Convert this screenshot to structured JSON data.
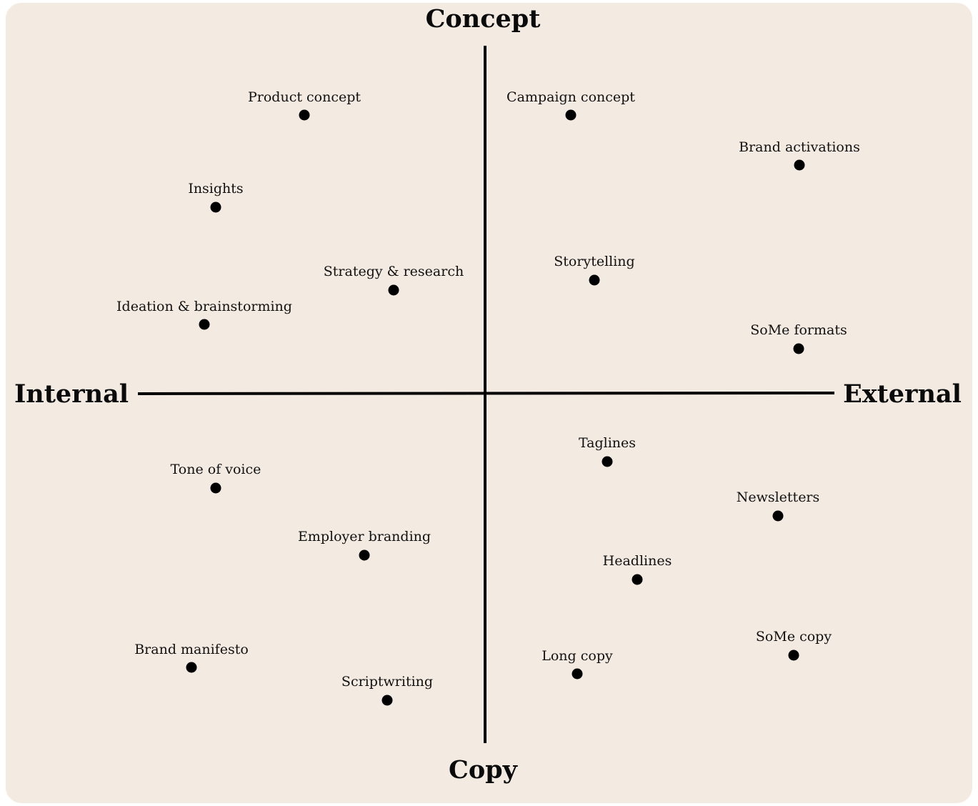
{
  "axes": {
    "top": "Concept",
    "bottom": "Copy",
    "left": "Internal",
    "right": "External"
  },
  "colors": {
    "background": "#f3eae2",
    "ink": "#000000"
  },
  "items": [
    {
      "label": "Product concept"
    },
    {
      "label": "Campaign concept"
    },
    {
      "label": "Brand activations"
    },
    {
      "label": "Insights"
    },
    {
      "label": "Strategy & research"
    },
    {
      "label": "Storytelling"
    },
    {
      "label": "Ideation & brainstorming"
    },
    {
      "label": "SoMe formats"
    },
    {
      "label": "Taglines"
    },
    {
      "label": "Tone of voice"
    },
    {
      "label": "Newsletters"
    },
    {
      "label": "Employer branding"
    },
    {
      "label": "Headlines"
    },
    {
      "label": "SoMe copy"
    },
    {
      "label": "Brand manifesto"
    },
    {
      "label": "Long copy"
    },
    {
      "label": "Scriptwriting"
    }
  ]
}
